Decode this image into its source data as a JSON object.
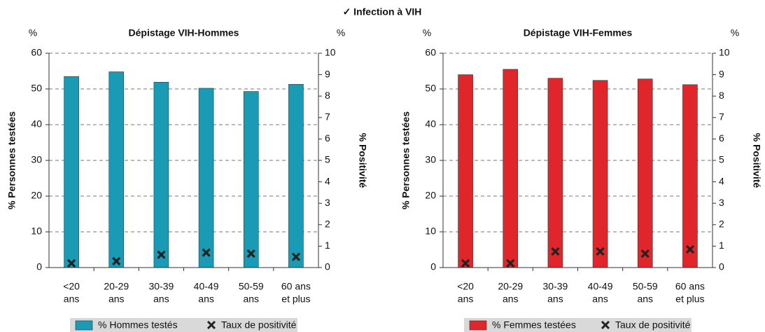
{
  "title": "✓ Infection à VIH",
  "chart_data": [
    {
      "type": "bar",
      "title": "Dépistage VIH-Hommes",
      "y_unit": "%",
      "y2_unit": "%",
      "ylabel": "% Personnes testées",
      "y2label": "% Positivité",
      "categories": [
        [
          "<20",
          "ans"
        ],
        [
          "20-29",
          "ans"
        ],
        [
          "30-39",
          "ans"
        ],
        [
          "40-49",
          "ans"
        ],
        [
          "50-59",
          "ans"
        ],
        [
          "60 ans",
          "et plus"
        ]
      ],
      "series": [
        {
          "name": "% Hommes testés",
          "color": "#1a9bb5",
          "values": [
            53.5,
            54.8,
            51.9,
            50.2,
            49.3,
            51.3
          ]
        },
        {
          "name": "Taux de positivité",
          "color": "#222222",
          "axis": "y2",
          "values": [
            0.2,
            0.3,
            0.6,
            0.7,
            0.65,
            0.5
          ]
        }
      ],
      "ylim": [
        0,
        60
      ],
      "yticks": [
        0,
        10,
        20,
        30,
        40,
        50,
        60
      ],
      "y2lim": [
        0,
        10
      ],
      "y2ticks": [
        0,
        1,
        2,
        3,
        4,
        5,
        6,
        7,
        8,
        9,
        10
      ],
      "grid": true,
      "legend": "bottom"
    },
    {
      "type": "bar",
      "title": "Dépistage VIH-Femmes",
      "y_unit": "%",
      "y2_unit": "%",
      "ylabel": "% Personnes testées",
      "y2label": "% Positivité",
      "categories": [
        [
          "<20",
          "ans"
        ],
        [
          "20-29",
          "ans"
        ],
        [
          "30-39",
          "ans"
        ],
        [
          "40-49",
          "ans"
        ],
        [
          "50-59",
          "ans"
        ],
        [
          "60 ans",
          "et plus"
        ]
      ],
      "series": [
        {
          "name": "% Femmes testées",
          "color": "#e0262b",
          "values": [
            54.0,
            55.5,
            53.0,
            52.4,
            52.8,
            51.2
          ]
        },
        {
          "name": "Taux de positivité",
          "color": "#222222",
          "axis": "y2",
          "values": [
            0.2,
            0.2,
            0.75,
            0.75,
            0.65,
            0.85
          ]
        }
      ],
      "ylim": [
        0,
        60
      ],
      "yticks": [
        0,
        10,
        20,
        30,
        40,
        50,
        60
      ],
      "y2lim": [
        0,
        10
      ],
      "y2ticks": [
        0,
        1,
        2,
        3,
        4,
        5,
        6,
        7,
        8,
        9,
        10
      ],
      "grid": true,
      "legend": "bottom"
    }
  ]
}
